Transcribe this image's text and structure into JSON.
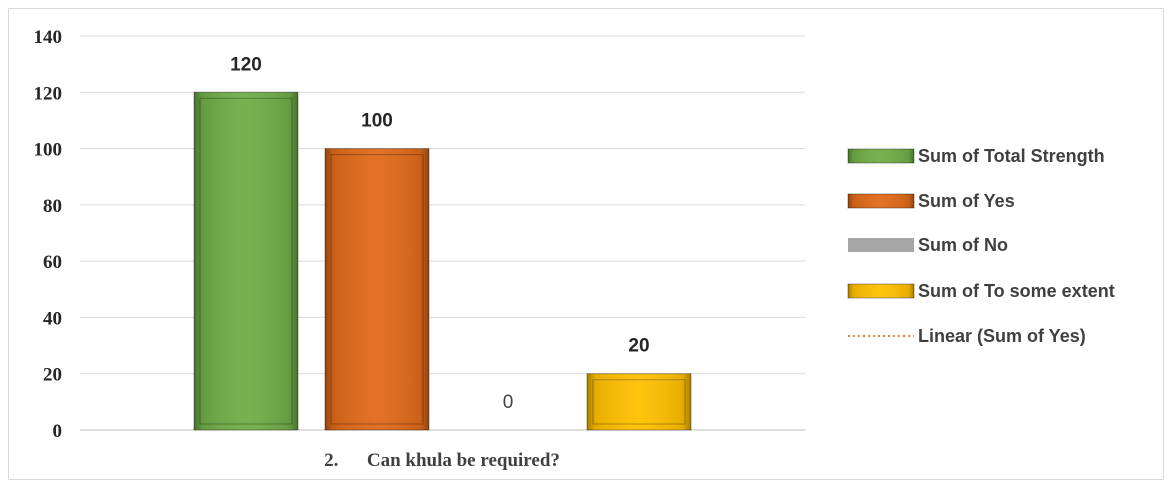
{
  "chart_data": {
    "type": "bar",
    "categories": [
      "2.      Can khula be required?"
    ],
    "series": [
      {
        "name": "Sum of Total Strength",
        "values": [
          120
        ],
        "color": "#70ad47"
      },
      {
        "name": "Sum of Yes",
        "values": [
          100
        ],
        "color": "#e06a1a"
      },
      {
        "name": "Sum of No",
        "values": [
          0
        ],
        "color": "#a5a5a5"
      },
      {
        "name": "Sum of To some extent",
        "values": [
          20
        ],
        "color": "#ffc000"
      }
    ],
    "trendline": {
      "name": "Linear (Sum of Yes)",
      "style": "dotted",
      "color": "#ed7d31"
    },
    "data_labels": [
      "120",
      "100",
      "0",
      "20"
    ],
    "yticks": [
      "0",
      "20",
      "40",
      "60",
      "80",
      "100",
      "120",
      "140"
    ],
    "ylim": [
      0,
      140
    ],
    "grid": true,
    "legend_position": "right",
    "title": "",
    "xlabel": "",
    "ylabel": ""
  }
}
